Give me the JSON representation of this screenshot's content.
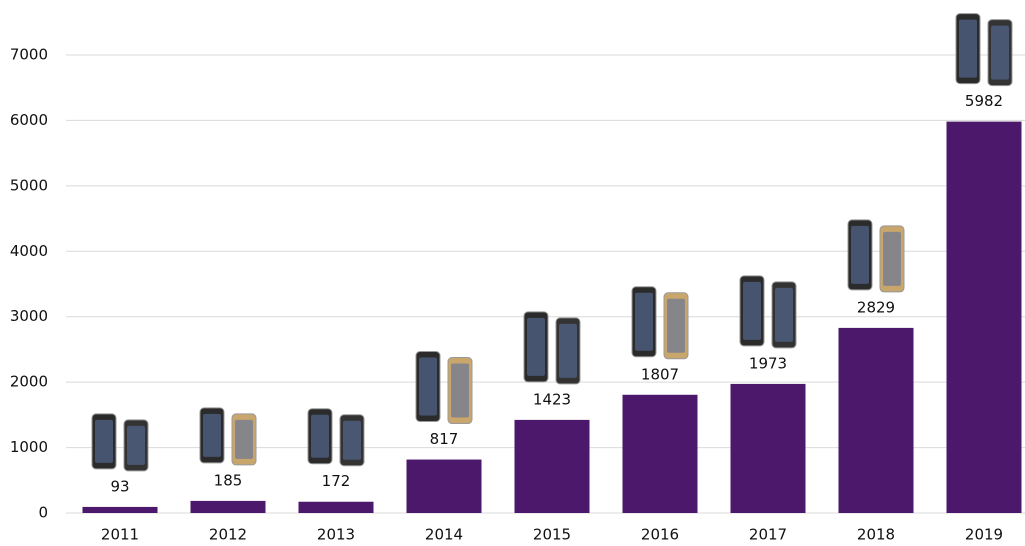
{
  "chart_data": {
    "type": "bar",
    "categories": [
      "2011",
      "2012",
      "2013",
      "2014",
      "2015",
      "2016",
      "2017",
      "2018",
      "2019"
    ],
    "values": [
      93,
      185,
      172,
      817,
      1423,
      1807,
      1973,
      2829,
      5982
    ],
    "color": "#4b186b",
    "ylim": [
      0,
      7000
    ],
    "yticks": [
      0,
      1000,
      2000,
      3000,
      4000,
      5000,
      6000,
      7000
    ],
    "grid": true
  }
}
